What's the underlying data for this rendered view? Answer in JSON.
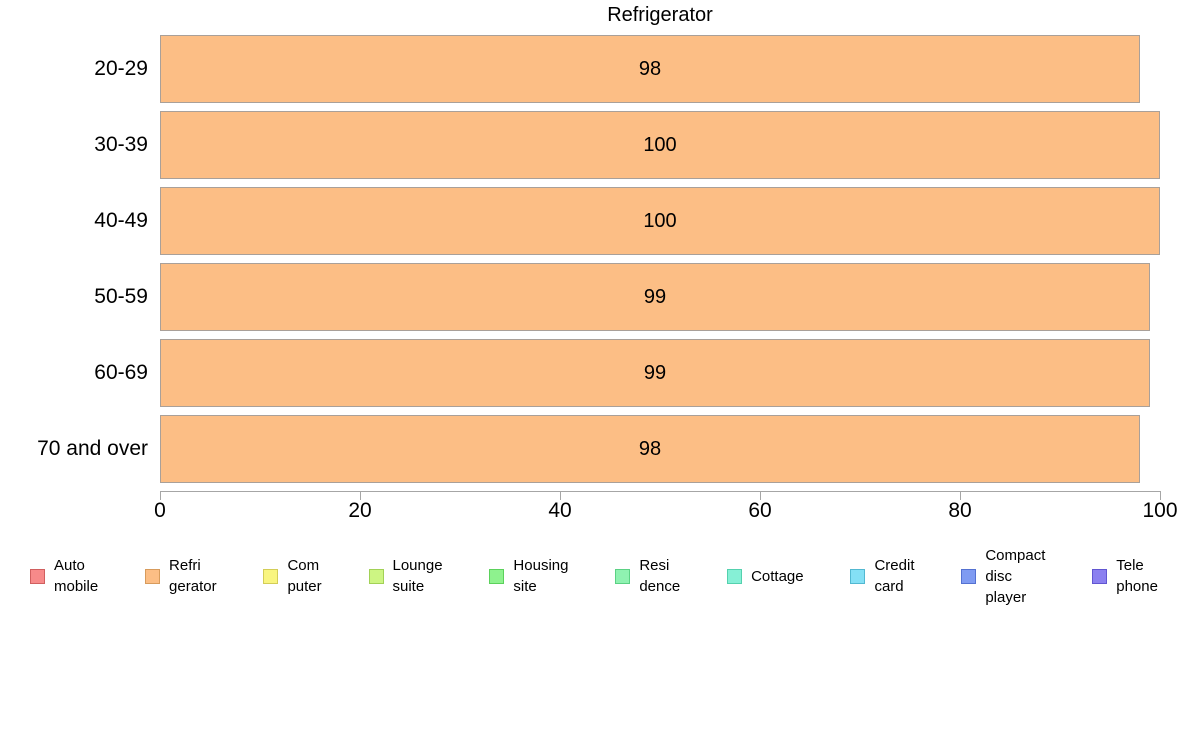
{
  "chart_data": {
    "type": "bar",
    "orientation": "horizontal",
    "title": "Refrigerator",
    "categories": [
      "20-29",
      "30-39",
      "40-49",
      "50-59",
      "60-69",
      "70 and over"
    ],
    "values": [
      98,
      100,
      100,
      99,
      99,
      98
    ],
    "xlabel": "",
    "ylabel": "",
    "xlim": [
      0,
      100
    ],
    "xticks": [
      0,
      20,
      40,
      60,
      80,
      100
    ],
    "grid": "off",
    "legend_position": "bottom",
    "bar_color": "#fcbe85",
    "bar_border_color": "#a9a099",
    "axis_color": "#a6a6a6",
    "legend": {
      "items": [
        {
          "label": "Auto\nmobile",
          "color": "#f78a8a",
          "border": "#d05f5f"
        },
        {
          "label": "Refri\ngerator",
          "color": "#fcbe85",
          "border": "#d79b5c"
        },
        {
          "label": "Com\nputer",
          "color": "#f9f580",
          "border": "#d3cd57"
        },
        {
          "label": "Lounge\nsuite",
          "color": "#cdf583",
          "border": "#a2d156"
        },
        {
          "label": "Housing\nsite",
          "color": "#8ef28e",
          "border": "#5bd15b"
        },
        {
          "label": "Resi\ndence",
          "color": "#8ff2b1",
          "border": "#5bd184"
        },
        {
          "label": "Cottage",
          "color": "#86f0d6",
          "border": "#54d1ae"
        },
        {
          "label": "Credit\ncard",
          "color": "#84e0f5",
          "border": "#52b8d1"
        },
        {
          "label": "Compact\ndisc\nplayer",
          "color": "#7f9bf2",
          "border": "#5471d1"
        },
        {
          "label": "Tele\nphone",
          "color": "#8b80f0",
          "border": "#6156d1"
        }
      ]
    }
  }
}
